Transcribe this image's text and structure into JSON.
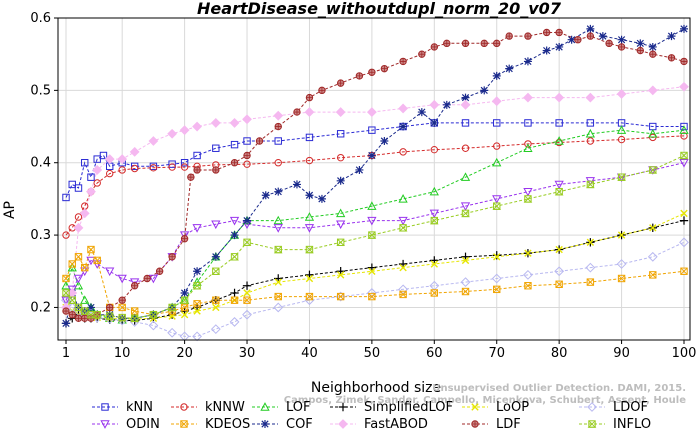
{
  "chart_data": {
    "type": "line",
    "title": "HeartDisease_withoutdupl_norm_20_v07",
    "xlabel": "Neighborhood size",
    "ylabel": "AP",
    "xlim": [
      0,
      100
    ],
    "ylim": [
      0.155,
      0.6
    ],
    "xticks": [
      1,
      10,
      20,
      30,
      40,
      50,
      60,
      70,
      80,
      90,
      100
    ],
    "yticks": [
      0.2,
      0.3,
      0.4,
      0.5,
      0.6
    ],
    "grid": true,
    "legend_position": "bottom",
    "watermark": "Campos, Zimek, Sander, Campello, Micenkova, Schubert, Assent, Houle",
    "watermark_top": "Unsupervised Outlier Detection. DAMI, 2015.",
    "series": [
      {
        "name": "kNN",
        "color": "#2a2ad4",
        "marker": "square",
        "x": [
          1,
          2,
          3,
          4,
          5,
          6,
          7,
          8,
          10,
          12,
          15,
          18,
          20,
          22,
          25,
          28,
          30,
          35,
          40,
          45,
          50,
          55,
          60,
          65,
          70,
          75,
          80,
          85,
          90,
          95,
          100
        ],
        "values": [
          0.352,
          0.37,
          0.365,
          0.4,
          0.38,
          0.405,
          0.41,
          0.395,
          0.4,
          0.395,
          0.395,
          0.398,
          0.4,
          0.41,
          0.42,
          0.425,
          0.43,
          0.43,
          0.435,
          0.44,
          0.445,
          0.45,
          0.455,
          0.455,
          0.455,
          0.455,
          0.455,
          0.455,
          0.455,
          0.45,
          0.45
        ]
      },
      {
        "name": "kNNW",
        "color": "#d42a2a",
        "marker": "circle",
        "x": [
          1,
          2,
          3,
          4,
          5,
          6,
          8,
          10,
          12,
          15,
          18,
          20,
          22,
          25,
          30,
          35,
          40,
          45,
          50,
          55,
          60,
          65,
          70,
          75,
          80,
          85,
          90,
          95,
          100
        ],
        "values": [
          0.3,
          0.31,
          0.325,
          0.34,
          0.36,
          0.372,
          0.385,
          0.39,
          0.392,
          0.393,
          0.394,
          0.394,
          0.395,
          0.397,
          0.398,
          0.4,
          0.403,
          0.407,
          0.41,
          0.415,
          0.418,
          0.42,
          0.423,
          0.426,
          0.428,
          0.43,
          0.432,
          0.435,
          0.437
        ]
      },
      {
        "name": "LOF",
        "color": "#22cc22",
        "marker": "triangle",
        "x": [
          1,
          2,
          3,
          4,
          5,
          6,
          8,
          10,
          12,
          15,
          18,
          20,
          22,
          25,
          28,
          30,
          35,
          40,
          45,
          50,
          55,
          60,
          65,
          70,
          75,
          80,
          85,
          90,
          95,
          100
        ],
        "values": [
          0.23,
          0.255,
          0.23,
          0.21,
          0.2,
          0.19,
          0.185,
          0.183,
          0.185,
          0.19,
          0.2,
          0.21,
          0.235,
          0.27,
          0.3,
          0.32,
          0.32,
          0.325,
          0.33,
          0.34,
          0.35,
          0.36,
          0.38,
          0.4,
          0.42,
          0.43,
          0.44,
          0.445,
          0.44,
          0.445
        ]
      },
      {
        "name": "SimplifiedLOF",
        "color": "#000000",
        "marker": "plus",
        "x": [
          1,
          2,
          3,
          4,
          5,
          6,
          8,
          10,
          12,
          15,
          18,
          20,
          22,
          25,
          28,
          30,
          35,
          40,
          45,
          50,
          55,
          60,
          65,
          70,
          75,
          80,
          85,
          90,
          95,
          100
        ],
        "values": [
          0.178,
          0.185,
          0.19,
          0.185,
          0.185,
          0.185,
          0.183,
          0.182,
          0.182,
          0.185,
          0.19,
          0.195,
          0.2,
          0.21,
          0.22,
          0.23,
          0.24,
          0.245,
          0.25,
          0.255,
          0.26,
          0.265,
          0.27,
          0.272,
          0.275,
          0.28,
          0.29,
          0.3,
          0.31,
          0.32
        ]
      },
      {
        "name": "LoOP",
        "color": "#e6e600",
        "marker": "x",
        "x": [
          1,
          2,
          3,
          4,
          5,
          6,
          8,
          10,
          12,
          15,
          18,
          20,
          22,
          25,
          28,
          30,
          35,
          40,
          45,
          50,
          55,
          60,
          65,
          70,
          75,
          80,
          85,
          90,
          95,
          100
        ],
        "values": [
          0.2,
          0.195,
          0.19,
          0.188,
          0.187,
          0.186,
          0.185,
          0.184,
          0.184,
          0.185,
          0.188,
          0.19,
          0.195,
          0.2,
          0.21,
          0.22,
          0.235,
          0.24,
          0.245,
          0.25,
          0.255,
          0.26,
          0.265,
          0.27,
          0.275,
          0.28,
          0.29,
          0.3,
          0.31,
          0.33
        ]
      },
      {
        "name": "LDOF",
        "color": "#b8b8f0",
        "marker": "diamond",
        "x": [
          1,
          2,
          3,
          4,
          5,
          6,
          8,
          10,
          12,
          15,
          18,
          20,
          22,
          25,
          28,
          30,
          35,
          40,
          45,
          50,
          55,
          60,
          65,
          70,
          75,
          80,
          85,
          90,
          95,
          100
        ],
        "values": [
          0.21,
          0.2,
          0.195,
          0.19,
          0.188,
          0.186,
          0.184,
          0.182,
          0.18,
          0.175,
          0.165,
          0.16,
          0.16,
          0.17,
          0.18,
          0.19,
          0.2,
          0.21,
          0.215,
          0.22,
          0.225,
          0.23,
          0.235,
          0.24,
          0.245,
          0.25,
          0.255,
          0.26,
          0.27,
          0.29
        ]
      },
      {
        "name": "ODIN",
        "color": "#9933ee",
        "marker": "triangle-down",
        "x": [
          1,
          2,
          3,
          4,
          5,
          6,
          8,
          10,
          12,
          15,
          18,
          20,
          22,
          25,
          28,
          30,
          35,
          40,
          45,
          50,
          55,
          60,
          65,
          70,
          75,
          80,
          85,
          90,
          95,
          100
        ],
        "values": [
          0.21,
          0.225,
          0.24,
          0.25,
          0.265,
          0.26,
          0.25,
          0.24,
          0.235,
          0.24,
          0.27,
          0.3,
          0.31,
          0.315,
          0.32,
          0.315,
          0.31,
          0.31,
          0.315,
          0.32,
          0.32,
          0.33,
          0.34,
          0.35,
          0.36,
          0.37,
          0.375,
          0.38,
          0.39,
          0.4
        ]
      },
      {
        "name": "KDEOS",
        "color": "#f0a400",
        "marker": "square-x",
        "x": [
          1,
          2,
          3,
          4,
          5,
          6,
          8,
          10,
          12,
          15,
          18,
          20,
          22,
          25,
          28,
          30,
          35,
          40,
          45,
          50,
          55,
          60,
          65,
          70,
          75,
          80,
          85,
          90,
          95,
          100
        ],
        "values": [
          0.24,
          0.26,
          0.27,
          0.255,
          0.28,
          0.265,
          0.2,
          0.2,
          0.195,
          0.19,
          0.195,
          0.2,
          0.205,
          0.21,
          0.21,
          0.21,
          0.215,
          0.215,
          0.215,
          0.215,
          0.218,
          0.22,
          0.222,
          0.225,
          0.23,
          0.232,
          0.235,
          0.24,
          0.245,
          0.25
        ]
      },
      {
        "name": "COF",
        "color": "#1a2a8c",
        "marker": "asterisk",
        "x": [
          1,
          2,
          3,
          4,
          5,
          6,
          8,
          10,
          12,
          15,
          18,
          20,
          22,
          25,
          28,
          30,
          33,
          35,
          38,
          40,
          42,
          45,
          48,
          50,
          52,
          55,
          58,
          60,
          62,
          65,
          68,
          70,
          72,
          75,
          78,
          80,
          82,
          85,
          87,
          90,
          93,
          95,
          98,
          100
        ],
        "values": [
          0.178,
          0.22,
          0.2,
          0.195,
          0.2,
          0.19,
          0.19,
          0.185,
          0.185,
          0.19,
          0.2,
          0.22,
          0.25,
          0.27,
          0.3,
          0.32,
          0.355,
          0.36,
          0.37,
          0.355,
          0.35,
          0.375,
          0.39,
          0.41,
          0.43,
          0.45,
          0.47,
          0.455,
          0.48,
          0.49,
          0.5,
          0.52,
          0.53,
          0.54,
          0.555,
          0.56,
          0.57,
          0.585,
          0.575,
          0.57,
          0.565,
          0.56,
          0.575,
          0.585
        ]
      },
      {
        "name": "FastABOD",
        "color": "#f5b8f0",
        "marker": "diamond-filled",
        "x": [
          1,
          2,
          3,
          4,
          5,
          6,
          8,
          10,
          12,
          15,
          18,
          20,
          22,
          25,
          28,
          30,
          35,
          40,
          45,
          50,
          55,
          60,
          65,
          70,
          75,
          80,
          85,
          90,
          95,
          100
        ],
        "values": [
          0.2,
          0.22,
          0.31,
          0.33,
          0.36,
          0.39,
          0.405,
          0.405,
          0.415,
          0.43,
          0.44,
          0.445,
          0.45,
          0.455,
          0.455,
          0.46,
          0.465,
          0.47,
          0.47,
          0.47,
          0.475,
          0.48,
          0.48,
          0.485,
          0.49,
          0.49,
          0.49,
          0.495,
          0.5,
          0.505
        ]
      },
      {
        "name": "LDF",
        "color": "#a02828",
        "marker": "circle-filled",
        "x": [
          1,
          2,
          3,
          4,
          5,
          6,
          8,
          10,
          12,
          14,
          16,
          18,
          20,
          21,
          22,
          25,
          28,
          30,
          32,
          35,
          38,
          40,
          42,
          45,
          48,
          50,
          52,
          55,
          58,
          60,
          62,
          65,
          68,
          70,
          72,
          75,
          78,
          80,
          83,
          85,
          88,
          90,
          93,
          95,
          98,
          100
        ],
        "values": [
          0.195,
          0.19,
          0.185,
          0.185,
          0.185,
          0.19,
          0.2,
          0.21,
          0.23,
          0.24,
          0.25,
          0.27,
          0.295,
          0.38,
          0.39,
          0.39,
          0.4,
          0.41,
          0.43,
          0.45,
          0.47,
          0.49,
          0.5,
          0.51,
          0.52,
          0.525,
          0.53,
          0.54,
          0.55,
          0.56,
          0.565,
          0.565,
          0.565,
          0.565,
          0.575,
          0.575,
          0.58,
          0.58,
          0.57,
          0.575,
          0.565,
          0.56,
          0.555,
          0.55,
          0.545,
          0.54
        ]
      },
      {
        "name": "INFLO",
        "color": "#99cc22",
        "marker": "hourglass",
        "x": [
          1,
          2,
          3,
          4,
          5,
          6,
          8,
          10,
          12,
          15,
          18,
          20,
          22,
          25,
          28,
          30,
          35,
          40,
          45,
          50,
          55,
          60,
          65,
          70,
          75,
          80,
          85,
          90,
          95,
          100
        ],
        "values": [
          0.22,
          0.21,
          0.2,
          0.195,
          0.19,
          0.19,
          0.188,
          0.186,
          0.185,
          0.19,
          0.2,
          0.21,
          0.23,
          0.25,
          0.27,
          0.29,
          0.28,
          0.28,
          0.29,
          0.3,
          0.31,
          0.32,
          0.33,
          0.34,
          0.35,
          0.36,
          0.37,
          0.38,
          0.39,
          0.41
        ]
      }
    ]
  }
}
